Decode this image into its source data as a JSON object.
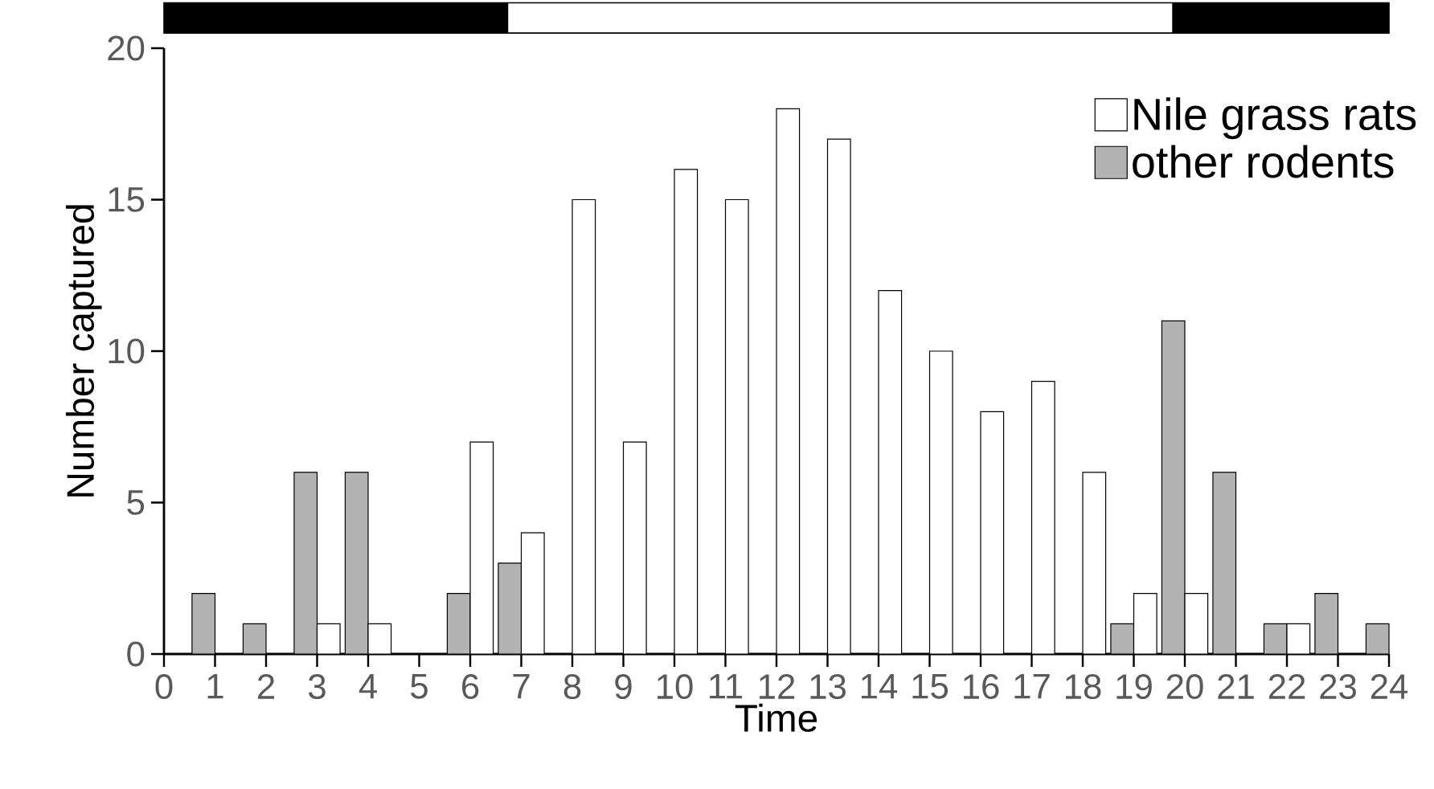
{
  "chart_data": {
    "type": "bar",
    "xlabel": "Time",
    "ylabel": "Number captured",
    "x": [
      1,
      2,
      3,
      4,
      5,
      6,
      7,
      8,
      9,
      10,
      11,
      12,
      13,
      14,
      15,
      16,
      17,
      18,
      19,
      20,
      21,
      22,
      23,
      24
    ],
    "series": [
      {
        "name": "other rodents",
        "color": "#b3b3b3",
        "values": [
          2,
          1,
          6,
          6,
          null,
          2,
          3,
          null,
          null,
          null,
          null,
          null,
          null,
          null,
          null,
          null,
          null,
          null,
          1,
          11,
          6,
          1,
          2,
          1
        ]
      },
      {
        "name": "Nile grass rats",
        "color": "#ffffff",
        "values": [
          null,
          null,
          1,
          1,
          null,
          7,
          4,
          15,
          7,
          16,
          15,
          18,
          17,
          12,
          10,
          8,
          9,
          6,
          2,
          2,
          null,
          1,
          null,
          null
        ]
      }
    ],
    "xlim": [
      0,
      24
    ],
    "xticks": [
      0,
      1,
      2,
      3,
      4,
      5,
      6,
      7,
      8,
      9,
      10,
      11,
      12,
      13,
      14,
      15,
      16,
      17,
      18,
      19,
      20,
      21,
      22,
      23,
      24
    ],
    "ylim": [
      0,
      20
    ],
    "yticks": [
      0,
      5,
      10,
      15,
      20
    ],
    "legend": "top right",
    "grid": false
  }
}
